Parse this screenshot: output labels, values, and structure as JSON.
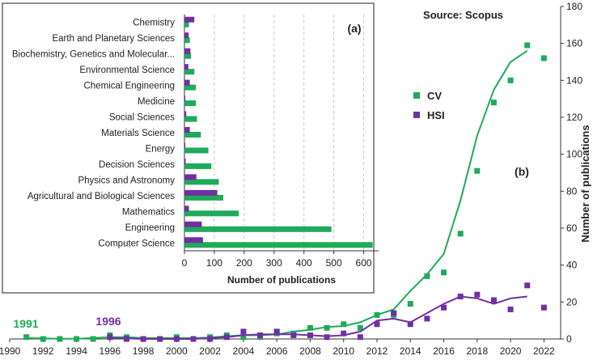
{
  "chart_data": [
    {
      "type": "scatter",
      "panel_label": "(b)",
      "source_note": "Source: Scopus",
      "ylabel": "Number of publications",
      "xlim": [
        1990,
        2023
      ],
      "ylim": [
        0,
        180
      ],
      "x_ticks": [
        1990,
        1992,
        1994,
        1996,
        1998,
        2000,
        2002,
        2004,
        2006,
        2008,
        2010,
        2012,
        2014,
        2016,
        2018,
        2020,
        2022
      ],
      "y_ticks": [
        0,
        20,
        40,
        60,
        80,
        100,
        120,
        140,
        160,
        180
      ],
      "y_axis_side": "right",
      "legend_placement": "center-right",
      "annotations": [
        {
          "text": "1991",
          "x": 1991,
          "series": "CV"
        },
        {
          "text": "1996",
          "x": 1996,
          "series": "HSI"
        }
      ],
      "series": [
        {
          "name": "CV",
          "color": "#1faa59",
          "points": [
            [
              1991,
              1
            ],
            [
              1992,
              0
            ],
            [
              1993,
              0
            ],
            [
              1994,
              0
            ],
            [
              1995,
              0
            ],
            [
              1996,
              2
            ],
            [
              1997,
              1
            ],
            [
              1998,
              0
            ],
            [
              1999,
              0
            ],
            [
              2000,
              1
            ],
            [
              2001,
              0
            ],
            [
              2002,
              1
            ],
            [
              2003,
              2
            ],
            [
              2004,
              1
            ],
            [
              2005,
              1
            ],
            [
              2006,
              3
            ],
            [
              2007,
              3
            ],
            [
              2008,
              6
            ],
            [
              2009,
              6
            ],
            [
              2010,
              8
            ],
            [
              2011,
              6
            ],
            [
              2012,
              13
            ],
            [
              2013,
              13
            ],
            [
              2014,
              19
            ],
            [
              2015,
              34
            ],
            [
              2016,
              36
            ],
            [
              2017,
              57
            ],
            [
              2018,
              91
            ],
            [
              2019,
              128
            ],
            [
              2020,
              140
            ],
            [
              2021,
              159
            ],
            [
              2022,
              152
            ]
          ],
          "trend": [
            [
              1991,
              0.5
            ],
            [
              1992,
              0.3
            ],
            [
              1993,
              0.1
            ],
            [
              1994,
              0.1
            ],
            [
              1995,
              0.5
            ],
            [
              1996,
              1
            ],
            [
              1997,
              1
            ],
            [
              1998,
              0.5
            ],
            [
              1999,
              0.5
            ],
            [
              2000,
              0.5
            ],
            [
              2001,
              0.5
            ],
            [
              2002,
              0.8
            ],
            [
              2003,
              1.5
            ],
            [
              2004,
              2
            ],
            [
              2005,
              2
            ],
            [
              2006,
              2.5
            ],
            [
              2007,
              4
            ],
            [
              2008,
              5
            ],
            [
              2009,
              6.5
            ],
            [
              2010,
              7
            ],
            [
              2011,
              9
            ],
            [
              2012,
              13
            ],
            [
              2013,
              16
            ],
            [
              2014,
              26
            ],
            [
              2015,
              35
            ],
            [
              2016,
              46
            ],
            [
              2017,
              75
            ],
            [
              2018,
              110
            ],
            [
              2019,
              135
            ],
            [
              2020,
              150
            ],
            [
              2021,
              156
            ]
          ]
        },
        {
          "name": "HSI",
          "color": "#7030a0",
          "points": [
            [
              1996,
              1
            ],
            [
              1997,
              0
            ],
            [
              1998,
              0
            ],
            [
              1999,
              0
            ],
            [
              2000,
              0
            ],
            [
              2001,
              0
            ],
            [
              2002,
              0
            ],
            [
              2003,
              1
            ],
            [
              2004,
              4
            ],
            [
              2005,
              2
            ],
            [
              2006,
              4
            ],
            [
              2007,
              2
            ],
            [
              2008,
              2
            ],
            [
              2009,
              1
            ],
            [
              2010,
              3
            ],
            [
              2011,
              1
            ],
            [
              2012,
              8
            ],
            [
              2013,
              14
            ],
            [
              2014,
              8
            ],
            [
              2015,
              11
            ],
            [
              2016,
              17
            ],
            [
              2017,
              23
            ],
            [
              2018,
              24
            ],
            [
              2019,
              21
            ],
            [
              2020,
              16
            ],
            [
              2021,
              29
            ],
            [
              2022,
              17
            ]
          ],
          "trend": [
            [
              1996,
              0.5
            ],
            [
              1997,
              0.3
            ],
            [
              1998,
              0
            ],
            [
              1999,
              0
            ],
            [
              2000,
              0
            ],
            [
              2001,
              0
            ],
            [
              2002,
              0.5
            ],
            [
              2003,
              1
            ],
            [
              2004,
              2
            ],
            [
              2005,
              2.5
            ],
            [
              2006,
              2.5
            ],
            [
              2007,
              2.5
            ],
            [
              2008,
              2
            ],
            [
              2009,
              1.5
            ],
            [
              2010,
              2
            ],
            [
              2011,
              4
            ],
            [
              2012,
              10
            ],
            [
              2013,
              11
            ],
            [
              2014,
              9
            ],
            [
              2015,
              14
            ],
            [
              2016,
              19
            ],
            [
              2017,
              23
            ],
            [
              2018,
              22
            ],
            [
              2019,
              19
            ],
            [
              2020,
              22
            ],
            [
              2021,
              23
            ]
          ]
        }
      ]
    },
    {
      "type": "bar",
      "orientation": "horizontal",
      "panel_label": "(a)",
      "xlabel": "Number of publications",
      "xlim": [
        0,
        650
      ],
      "x_ticks": [
        0,
        100,
        200,
        300,
        400,
        500,
        600
      ],
      "grid": "vertical-dashed",
      "categories": [
        "Chemistry",
        "Earth and Planetary Sciences",
        "Biochemistry, Genetics and Molecular...",
        "Environmental Science",
        "Chemical Engineering",
        "Medicine",
        "Social Sciences",
        "Materials Science",
        "Energy",
        "Decision Sciences",
        "Physics and Astronomy",
        "Agricultural and Biological Sciences",
        "Mathematics",
        "Engineering",
        "Computer Science"
      ],
      "series": [
        {
          "name": "CV",
          "color": "#1faa59",
          "values": [
            15,
            18,
            22,
            33,
            38,
            38,
            42,
            55,
            80,
            90,
            115,
            130,
            182,
            492,
            630
          ]
        },
        {
          "name": "HSI",
          "color": "#7030a0",
          "values": [
            33,
            14,
            20,
            13,
            18,
            3,
            6,
            18,
            3,
            4,
            40,
            110,
            15,
            58,
            62
          ]
        }
      ]
    }
  ]
}
